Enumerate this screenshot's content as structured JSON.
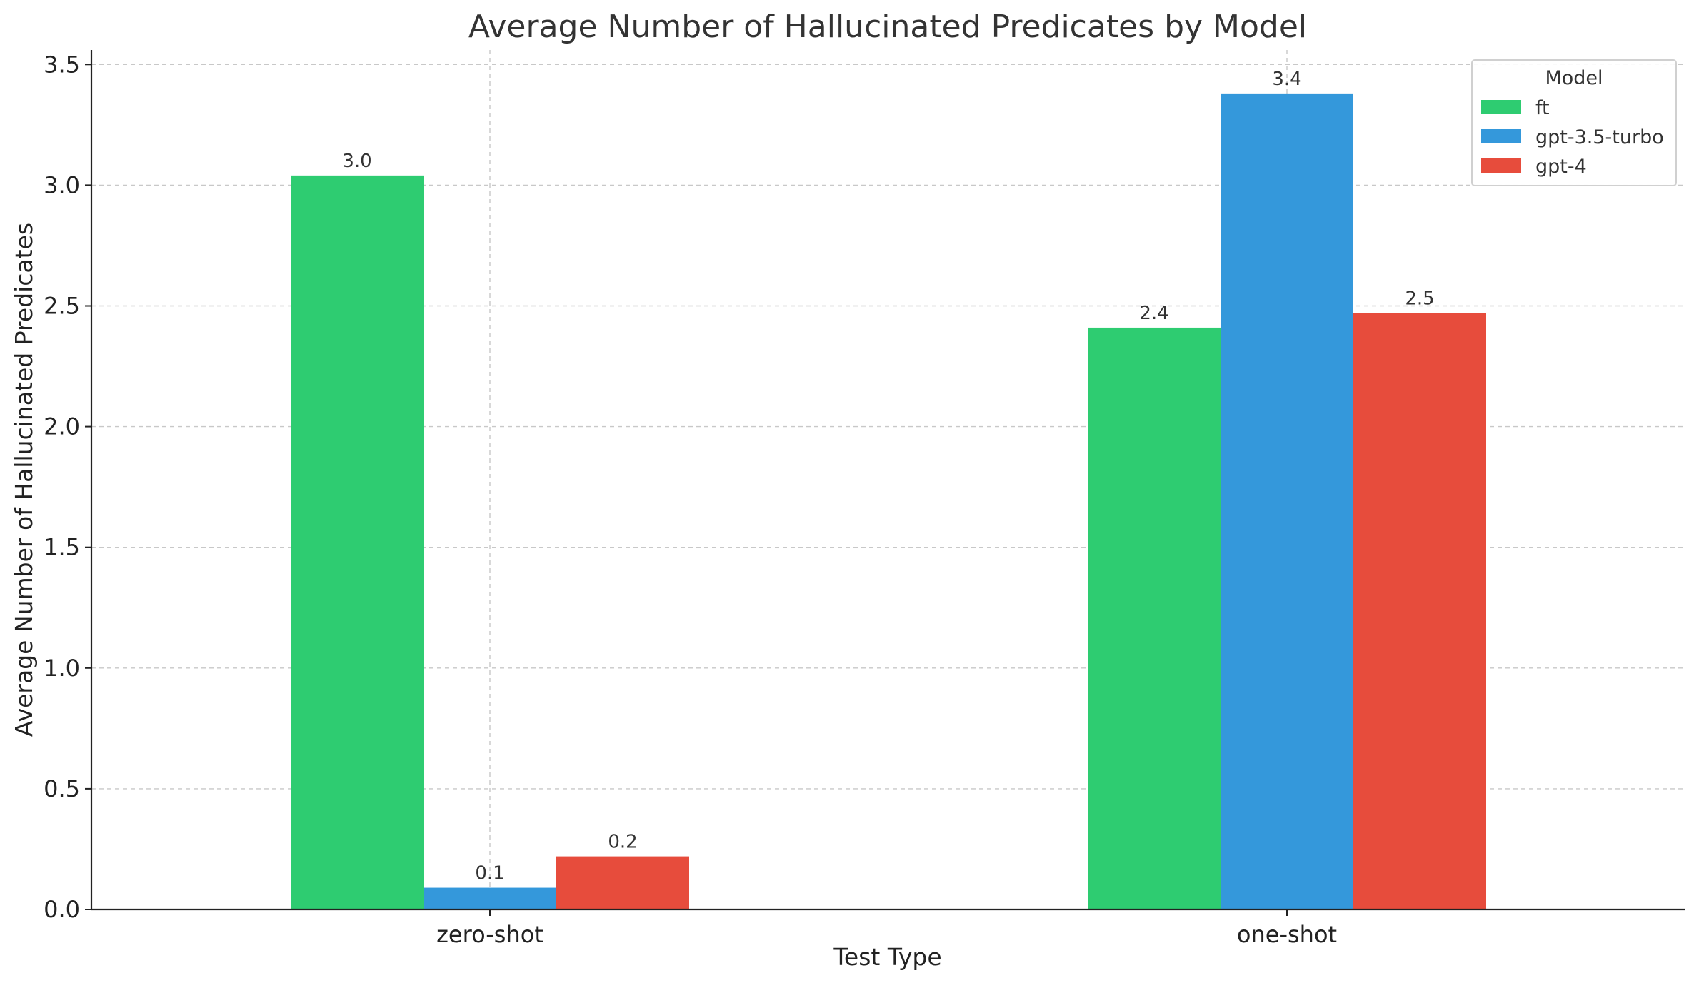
{
  "chart_data": {
    "type": "bar",
    "title": "Average Number of Hallucinated Predicates by Model",
    "xlabel": "Test Type",
    "ylabel": "Average Number of Hallucinated Predicates",
    "categories": [
      "zero-shot",
      "one-shot"
    ],
    "series": [
      {
        "name": "ft",
        "color": "#2ecc71",
        "values": [
          3.04,
          2.41
        ],
        "labels": [
          "3.0",
          "2.4"
        ]
      },
      {
        "name": "gpt-3.5-turbo",
        "color": "#3498db",
        "values": [
          0.09,
          3.38
        ],
        "labels": [
          "0.1",
          "3.4"
        ]
      },
      {
        "name": "gpt-4",
        "color": "#e74c3c",
        "values": [
          0.22,
          2.47
        ],
        "labels": [
          "0.2",
          "2.5"
        ]
      }
    ],
    "ylim": [
      0,
      3.56
    ],
    "yticks": [
      "0.0",
      "0.5",
      "1.0",
      "1.5",
      "2.0",
      "2.5",
      "3.0",
      "3.5"
    ],
    "grid": true,
    "legend": {
      "title": "Model",
      "position": "top-right"
    }
  }
}
